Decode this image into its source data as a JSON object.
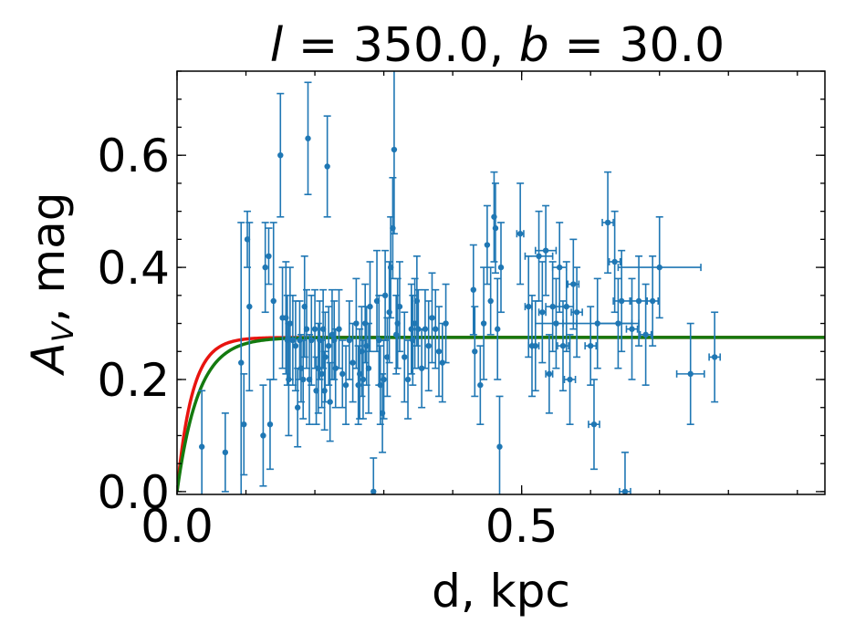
{
  "chart_data": {
    "type": "scatter",
    "title": "l = 350.0, b = 30.0",
    "title_parts": {
      "l_sym": "l",
      "l_val": " = 350.0, ",
      "b_sym": "b",
      "b_val": " = 30.0"
    },
    "xlabel": "d, kpc",
    "ylabel": "A_V, mag",
    "ylabel_parts": {
      "main": "A",
      "sub": "V",
      "rest": ", mag"
    },
    "xlim": [
      0.0,
      0.94
    ],
    "ylim": [
      -0.005,
      0.75
    ],
    "xticks": [
      0.0,
      0.5
    ],
    "xtick_labels": [
      "0.0",
      "0.5"
    ],
    "yticks": [
      0.0,
      0.2,
      0.4,
      0.6
    ],
    "ytick_labels": [
      "0.0",
      "0.2",
      "0.4",
      "0.6"
    ],
    "x_minor_step": 0.1,
    "y_minor_step": 0.05,
    "grid": false,
    "colors": {
      "points": "#1f77b4",
      "model_red": "#e8140f",
      "model_green": "#147a0f",
      "axes": "#000000"
    },
    "series": [
      {
        "kind": "errorbar",
        "points": [
          [
            0.036,
            0.08,
            0.1,
            0.0
          ],
          [
            0.07,
            0.07,
            0.07,
            0.0
          ],
          [
            0.093,
            0.23,
            0.25,
            0.0
          ],
          [
            0.097,
            0.12,
            0.09,
            0.0
          ],
          [
            0.102,
            0.45,
            0.05,
            0.0
          ],
          [
            0.105,
            0.33,
            0.15,
            0.0
          ],
          [
            0.125,
            0.1,
            0.09,
            0.0
          ],
          [
            0.128,
            0.4,
            0.08,
            0.0
          ],
          [
            0.133,
            0.42,
            0.05,
            0.0
          ],
          [
            0.135,
            0.12,
            0.08,
            0.0
          ],
          [
            0.14,
            0.34,
            0.14,
            0.0
          ],
          [
            0.15,
            0.6,
            0.11,
            0.0
          ],
          [
            0.153,
            0.31,
            0.09,
            0.0
          ],
          [
            0.158,
            0.31,
            0.1,
            0.0
          ],
          [
            0.16,
            0.27,
            0.08,
            0.0
          ],
          [
            0.162,
            0.2,
            0.1,
            0.0
          ],
          [
            0.164,
            0.3,
            0.1,
            0.0
          ],
          [
            0.168,
            0.27,
            0.08,
            0.0
          ],
          [
            0.172,
            0.26,
            0.08,
            0.0
          ],
          [
            0.175,
            0.15,
            0.07,
            0.0
          ],
          [
            0.178,
            0.27,
            0.07,
            0.0
          ],
          [
            0.18,
            0.22,
            0.06,
            0.0
          ],
          [
            0.183,
            0.2,
            0.07,
            0.0
          ],
          [
            0.185,
            0.33,
            0.09,
            0.0
          ],
          [
            0.188,
            0.29,
            0.07,
            0.0
          ],
          [
            0.19,
            0.63,
            0.1,
            0.0
          ],
          [
            0.192,
            0.2,
            0.08,
            0.0
          ],
          [
            0.195,
            0.27,
            0.08,
            0.0
          ],
          [
            0.2,
            0.29,
            0.07,
            0.0
          ],
          [
            0.202,
            0.18,
            0.06,
            0.0
          ],
          [
            0.205,
            0.22,
            0.08,
            0.0
          ],
          [
            0.207,
            0.27,
            0.07,
            0.0
          ],
          [
            0.21,
            0.21,
            0.06,
            0.0
          ],
          [
            0.212,
            0.29,
            0.07,
            0.0
          ],
          [
            0.214,
            0.18,
            0.07,
            0.0
          ],
          [
            0.215,
            0.24,
            0.08,
            0.0
          ],
          [
            0.218,
            0.58,
            0.09,
            0.0
          ],
          [
            0.22,
            0.26,
            0.07,
            0.0
          ],
          [
            0.222,
            0.16,
            0.07,
            0.0
          ],
          [
            0.225,
            0.28,
            0.08,
            0.0
          ],
          [
            0.228,
            0.27,
            0.07,
            0.0
          ],
          [
            0.23,
            0.22,
            0.07,
            0.0
          ],
          [
            0.235,
            0.29,
            0.07,
            0.0
          ],
          [
            0.24,
            0.21,
            0.06,
            0.0
          ],
          [
            0.245,
            0.19,
            0.07,
            0.0
          ],
          [
            0.25,
            0.27,
            0.07,
            0.0
          ],
          [
            0.255,
            0.23,
            0.07,
            0.0
          ],
          [
            0.26,
            0.3,
            0.08,
            0.0
          ],
          [
            0.263,
            0.19,
            0.07,
            0.0
          ],
          [
            0.265,
            0.21,
            0.08,
            0.0
          ],
          [
            0.268,
            0.25,
            0.08,
            0.0
          ],
          [
            0.27,
            0.2,
            0.07,
            0.0
          ],
          [
            0.273,
            0.3,
            0.07,
            0.0
          ],
          [
            0.275,
            0.26,
            0.07,
            0.0
          ],
          [
            0.278,
            0.22,
            0.08,
            0.0
          ],
          [
            0.28,
            0.33,
            0.08,
            0.0
          ],
          [
            0.285,
            -0.0,
            0.06,
            0.0
          ],
          [
            0.29,
            0.34,
            0.09,
            0.0
          ],
          [
            0.293,
            0.27,
            0.08,
            0.0
          ],
          [
            0.295,
            0.19,
            0.07,
            0.0
          ],
          [
            0.298,
            0.14,
            0.07,
            0.0
          ],
          [
            0.3,
            0.2,
            0.07,
            0.0
          ],
          [
            0.302,
            0.35,
            0.08,
            0.0
          ],
          [
            0.305,
            0.24,
            0.07,
            0.0
          ],
          [
            0.308,
            0.32,
            0.09,
            0.0
          ],
          [
            0.31,
            0.4,
            0.09,
            0.0
          ],
          [
            0.313,
            0.47,
            0.09,
            0.0
          ],
          [
            0.315,
            0.61,
            0.15,
            0.0
          ],
          [
            0.318,
            0.28,
            0.07,
            0.0
          ],
          [
            0.32,
            0.3,
            0.08,
            0.0
          ],
          [
            0.323,
            0.33,
            0.08,
            0.0
          ],
          [
            0.33,
            0.24,
            0.08,
            0.0
          ],
          [
            0.335,
            0.2,
            0.07,
            0.0
          ],
          [
            0.34,
            0.29,
            0.08,
            0.0
          ],
          [
            0.342,
            0.27,
            0.08,
            0.0
          ],
          [
            0.345,
            0.3,
            0.08,
            0.0
          ],
          [
            0.348,
            0.34,
            0.08,
            0.0
          ],
          [
            0.35,
            0.29,
            0.07,
            0.0
          ],
          [
            0.355,
            0.22,
            0.07,
            0.0
          ],
          [
            0.36,
            0.29,
            0.07,
            0.0
          ],
          [
            0.365,
            0.26,
            0.08,
            0.0
          ],
          [
            0.37,
            0.31,
            0.08,
            0.0
          ],
          [
            0.375,
            0.29,
            0.07,
            0.0
          ],
          [
            0.38,
            0.25,
            0.08,
            0.0
          ],
          [
            0.385,
            0.23,
            0.07,
            0.0
          ],
          [
            0.39,
            0.3,
            0.07,
            0.0
          ],
          [
            0.43,
            0.36,
            0.08,
            0.0
          ],
          [
            0.432,
            0.25,
            0.08,
            0.0
          ],
          [
            0.44,
            0.19,
            0.07,
            0.0
          ],
          [
            0.445,
            0.3,
            0.1,
            0.0
          ],
          [
            0.45,
            0.44,
            0.07,
            0.0
          ],
          [
            0.455,
            0.34,
            0.06,
            0.0
          ],
          [
            0.46,
            0.49,
            0.08,
            0.0
          ],
          [
            0.462,
            0.47,
            0.08,
            0.0
          ],
          [
            0.465,
            0.29,
            0.09,
            0.0
          ],
          [
            0.468,
            0.08,
            0.09,
            0.0
          ],
          [
            0.47,
            0.4,
            0.08,
            0.0
          ],
          [
            0.498,
            0.46,
            0.09,
            0.005
          ],
          [
            0.51,
            0.33,
            0.09,
            0.005
          ],
          [
            0.515,
            0.26,
            0.09,
            0.005
          ],
          [
            0.52,
            0.26,
            0.08,
            0.005
          ],
          [
            0.525,
            0.42,
            0.08,
            0.02
          ],
          [
            0.53,
            0.32,
            0.09,
            0.005
          ],
          [
            0.535,
            0.43,
            0.08,
            0.015
          ],
          [
            0.54,
            0.21,
            0.07,
            0.005
          ],
          [
            0.545,
            0.33,
            0.08,
            0.01
          ],
          [
            0.55,
            0.3,
            0.08,
            0.03
          ],
          [
            0.555,
            0.4,
            0.08,
            0.01
          ],
          [
            0.56,
            0.26,
            0.08,
            0.008
          ],
          [
            0.565,
            0.33,
            0.08,
            0.01
          ],
          [
            0.57,
            0.2,
            0.08,
            0.008
          ],
          [
            0.575,
            0.37,
            0.08,
            0.008
          ],
          [
            0.58,
            0.32,
            0.08,
            0.008
          ],
          [
            0.6,
            0.26,
            0.07,
            0.008
          ],
          [
            0.605,
            0.12,
            0.08,
            0.008
          ],
          [
            0.61,
            0.3,
            0.08,
            0.05
          ],
          [
            0.625,
            0.48,
            0.09,
            0.008
          ],
          [
            0.635,
            0.41,
            0.09,
            0.008
          ],
          [
            0.64,
            0.3,
            0.08,
            0.03
          ],
          [
            0.645,
            0.34,
            0.09,
            0.012
          ],
          [
            0.65,
            -0.0,
            0.07,
            0.008
          ],
          [
            0.66,
            0.29,
            0.09,
            0.008
          ],
          [
            0.67,
            0.34,
            0.08,
            0.012
          ],
          [
            0.68,
            0.28,
            0.09,
            0.008
          ],
          [
            0.69,
            0.34,
            0.08,
            0.008
          ],
          [
            0.7,
            0.4,
            0.09,
            0.06
          ],
          [
            0.745,
            0.21,
            0.09,
            0.02
          ],
          [
            0.78,
            0.24,
            0.08,
            0.008
          ]
        ]
      },
      {
        "kind": "curve",
        "color": "red",
        "model": "A_max*(1-exp(-d/h))",
        "A_max": 0.275,
        "h": 0.022
      },
      {
        "kind": "curve",
        "color": "green",
        "model": "A_max*(1-exp(-d/h))",
        "A_max": 0.275,
        "h": 0.031
      }
    ]
  }
}
